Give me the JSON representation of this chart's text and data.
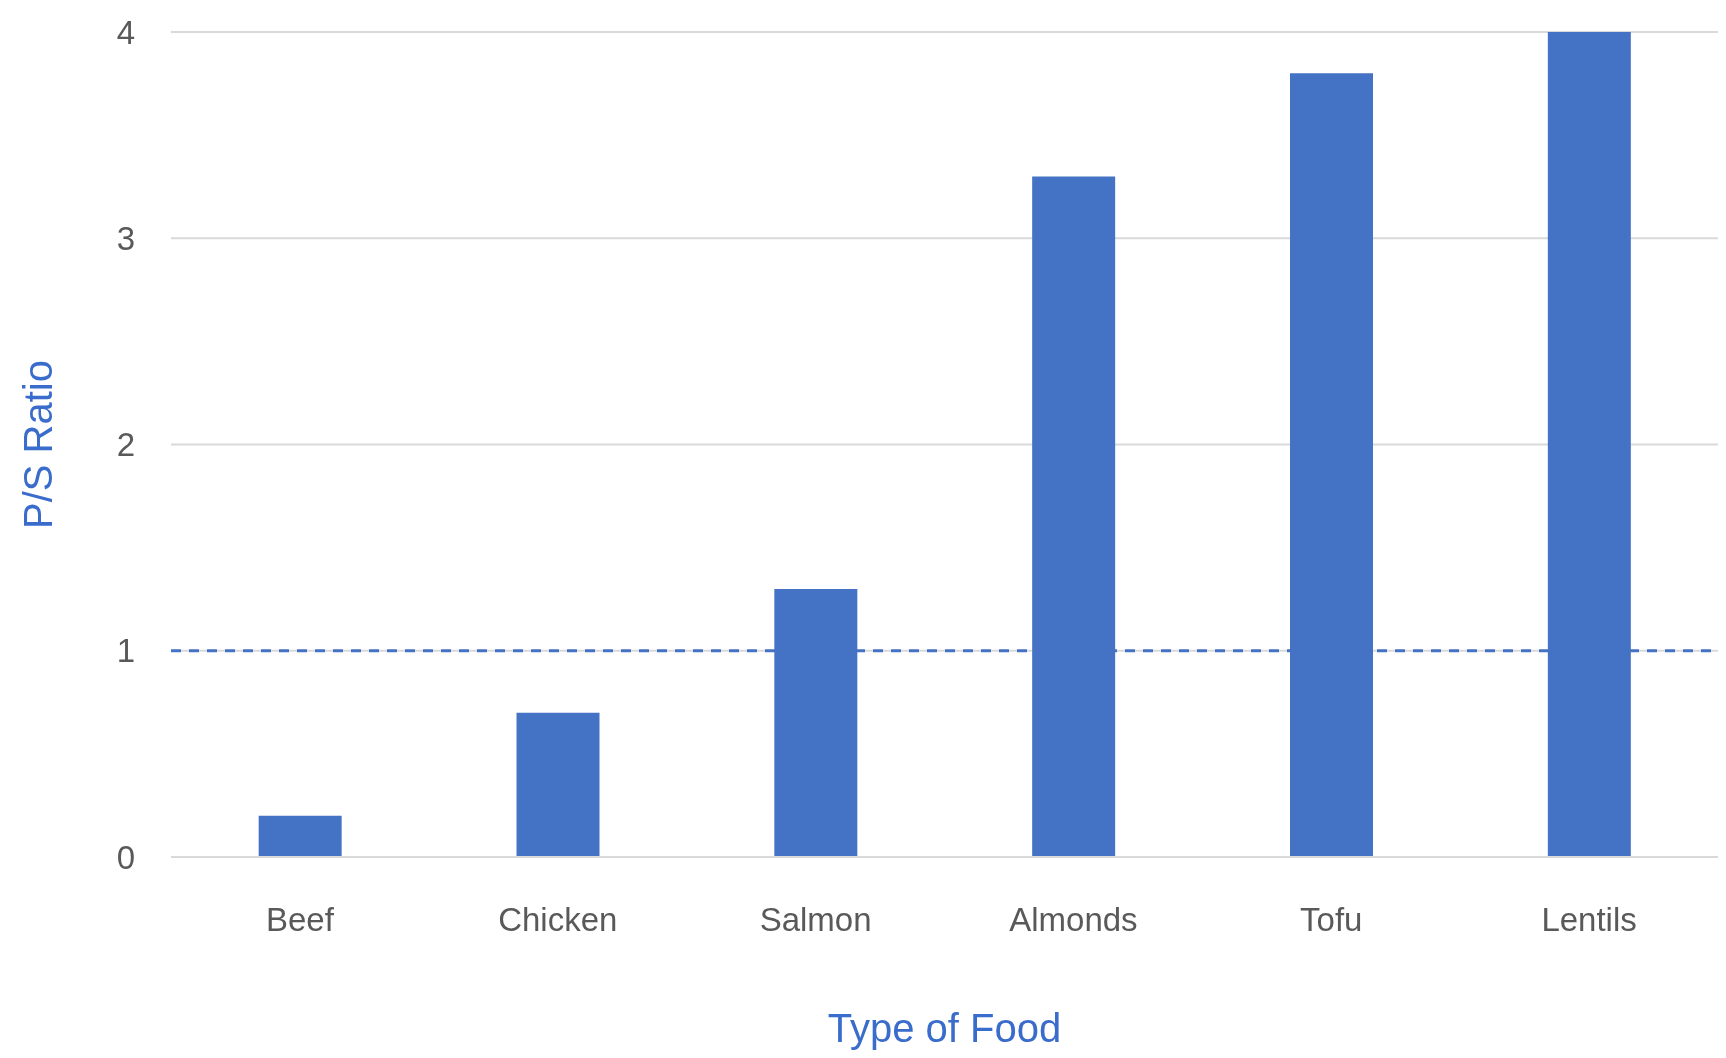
{
  "chart_data": {
    "type": "bar",
    "xlabel": "Type of Food",
    "ylabel": "P/S Ratio",
    "categories": [
      "Beef",
      "Chicken",
      "Salmon",
      "Almonds",
      "Tofu",
      "Lentils"
    ],
    "values": [
      0.2,
      0.7,
      1.3,
      3.3,
      3.8,
      4.0
    ],
    "color": "#4472c4",
    "ylim": [
      0,
      4
    ],
    "yticks": [
      0,
      1,
      2,
      3,
      4
    ],
    "grid": "y",
    "ref_lines": [
      {
        "axis": "y",
        "value": 1,
        "color": "#4472c4",
        "line_style": "dashed"
      }
    ]
  }
}
